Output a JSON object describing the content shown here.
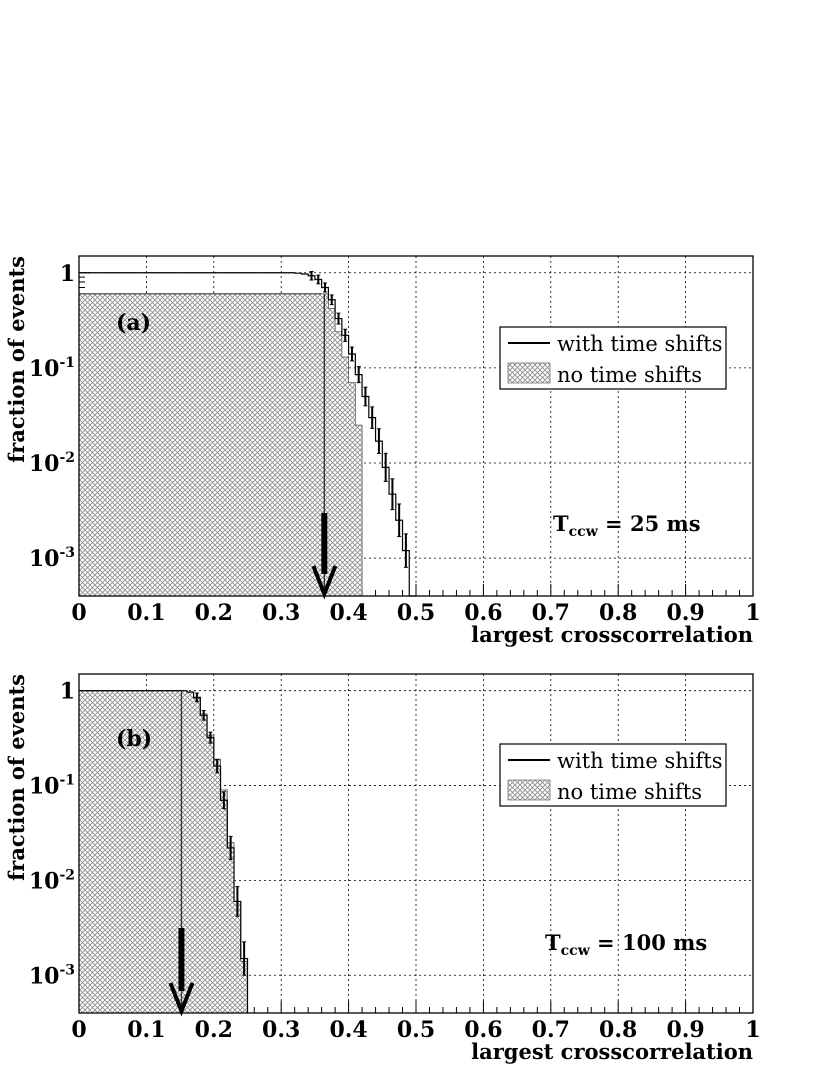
{
  "chart_data": [
    {
      "type": "line",
      "panel_label": "(a)",
      "xlabel": "largest crosscorrelation",
      "ylabel": "fraction of events",
      "xlim": [
        0,
        1
      ],
      "ylim": [
        0.0004,
        1.5
      ],
      "yscale": "log",
      "x_ticks": [
        "0",
        "0.1",
        "0.2",
        "0.3",
        "0.4",
        "0.5",
        "0.6",
        "0.7",
        "0.8",
        "0.9",
        "1"
      ],
      "y_ticks": [
        {
          "base": "10",
          "exp": "-3",
          "value": 0.001
        },
        {
          "base": "10",
          "exp": "-2",
          "value": 0.01
        },
        {
          "base": "10",
          "exp": "-1",
          "value": 0.1
        },
        {
          "base": "1",
          "exp": "",
          "value": 1
        }
      ],
      "grid": true,
      "legend_position": "top-right",
      "annotation": {
        "main": "T",
        "sub": "ccw",
        "rest": " = 25 ms"
      },
      "threshold_arrow_x": 0.364,
      "series": [
        {
          "name": "with time shifts",
          "style": "line",
          "x": [
            0,
            0.31,
            0.32,
            0.33,
            0.34,
            0.35,
            0.36,
            0.37,
            0.38,
            0.39,
            0.4,
            0.41,
            0.42,
            0.43,
            0.44,
            0.45,
            0.46,
            0.47,
            0.48,
            0.49,
            0.5
          ],
          "values": [
            1.0,
            1.0,
            0.99,
            0.97,
            0.93,
            0.85,
            0.7,
            0.52,
            0.33,
            0.22,
            0.14,
            0.085,
            0.05,
            0.03,
            0.017,
            0.009,
            0.0047,
            0.0025,
            0.0012,
            0.0004,
            0.0004
          ]
        },
        {
          "name": "no time shifts",
          "style": "hatched",
          "x": [
            0,
            0.36,
            0.37,
            0.38,
            0.39,
            0.4,
            0.41,
            0.42,
            0.43
          ],
          "values": [
            0.6,
            0.6,
            0.42,
            0.24,
            0.13,
            0.07,
            0.025,
            0.0004,
            0.0004
          ]
        }
      ]
    },
    {
      "type": "line",
      "panel_label": "(b)",
      "xlabel": "largest crosscorrelation",
      "ylabel": "fraction of events",
      "xlim": [
        0,
        1
      ],
      "ylim": [
        0.0004,
        1.5
      ],
      "yscale": "log",
      "x_ticks": [
        "0",
        "0.1",
        "0.2",
        "0.3",
        "0.4",
        "0.5",
        "0.6",
        "0.7",
        "0.8",
        "0.9",
        "1"
      ],
      "y_ticks": [
        {
          "base": "10",
          "exp": "-3",
          "value": 0.001
        },
        {
          "base": "10",
          "exp": "-2",
          "value": 0.01
        },
        {
          "base": "10",
          "exp": "-1",
          "value": 0.1
        },
        {
          "base": "1",
          "exp": "",
          "value": 1
        }
      ],
      "grid": true,
      "legend_position": "top-right",
      "annotation": {
        "main": "T",
        "sub": "ccw",
        "rest": " = 100 ms"
      },
      "threshold_arrow_x": 0.152,
      "series": [
        {
          "name": "with time shifts",
          "style": "line",
          "x": [
            0,
            0.15,
            0.16,
            0.17,
            0.18,
            0.19,
            0.2,
            0.21,
            0.22,
            0.23,
            0.24,
            0.25
          ],
          "values": [
            1.0,
            1.0,
            0.97,
            0.85,
            0.55,
            0.32,
            0.16,
            0.07,
            0.022,
            0.006,
            0.0015,
            0.0004
          ]
        },
        {
          "name": "no time shifts",
          "style": "hatched",
          "x": [
            0,
            0.15,
            0.16,
            0.17,
            0.18,
            0.19,
            0.2,
            0.21,
            0.22,
            0.23,
            0.24,
            0.25
          ],
          "values": [
            1.0,
            1.0,
            0.96,
            0.83,
            0.57,
            0.34,
            0.19,
            0.09,
            0.025,
            0.006,
            0.0014,
            0.0004
          ]
        }
      ]
    }
  ]
}
